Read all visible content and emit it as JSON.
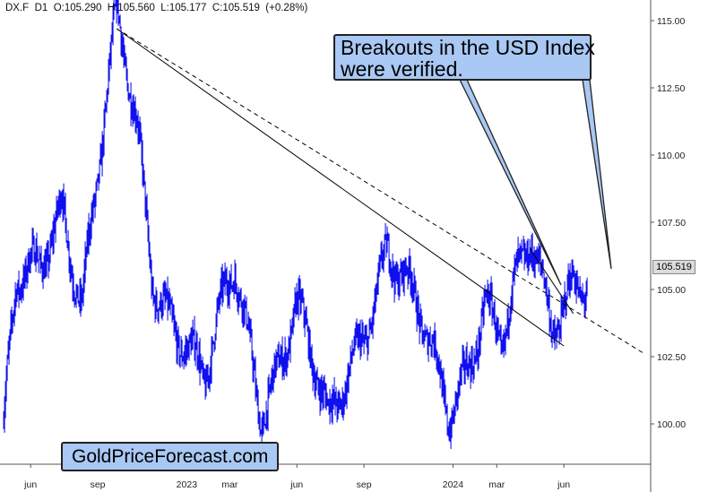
{
  "header": {
    "symbol": "DX.F",
    "timeframe": "D1",
    "open": "O:105.290",
    "high": "H:105.560",
    "low": "L:105.177",
    "close": "C:105.519",
    "change": "(+0.28%)"
  },
  "callout": {
    "line1": "Breakouts in the USD Index",
    "line2": "were verified."
  },
  "watermark": "GoldPriceForecast.com",
  "last_price_label": "105.519",
  "colors": {
    "series": "#0000ee",
    "callout_bg": "#a9c8f3",
    "trendline": "#000000",
    "axis": "#555555"
  },
  "chart_data": {
    "type": "line",
    "title": "",
    "xlabel": "",
    "ylabel": "",
    "ylim": [
      98.5,
      115.5
    ],
    "grid": false,
    "x_ticks": [
      "jun",
      "sep",
      "2023",
      "mar",
      "jun",
      "sep",
      "2024",
      "mar",
      "jun"
    ],
    "y_ticks": [
      "100.00",
      "102.50",
      "105.00",
      "107.50",
      "110.00",
      "112.50",
      "115.00"
    ],
    "series": [
      {
        "x": [
          "2022-04-25",
          "2022-05-12",
          "2022-06-14",
          "2022-07-14",
          "2022-08-10",
          "2022-09-27",
          "2022-10-25",
          "2022-11-15",
          "2022-12-30",
          "2023-01-26",
          "2023-03-08",
          "2023-04-13",
          "2023-05-31",
          "2023-07-14",
          "2023-10-03",
          "2023-12-27",
          "2024-02-14",
          "2024-03-08",
          "2024-04-16",
          "2024-05-16",
          "2024-06-14",
          "2024-07-03"
        ],
        "values": [
          99.8,
          104.8,
          105.5,
          108.5,
          105.0,
          114.7,
          110.5,
          105.5,
          103.5,
          101.5,
          105.5,
          100.8,
          104.5,
          99.5,
          106.8,
          100.5,
          104.8,
          102.8,
          106.5,
          104.0,
          105.8,
          105.519
        ]
      }
    ],
    "annotations": [
      {
        "type": "trendline",
        "style": "solid",
        "from": [
          "2022-09-27",
          114.7
        ],
        "to": [
          "2024-06-01",
          102.9
        ]
      },
      {
        "type": "trendline",
        "style": "dashed",
        "from": [
          "2022-09-27",
          114.7
        ],
        "to": [
          "2024-09-20",
          102.6
        ]
      },
      {
        "type": "trendline",
        "style": "solid",
        "from": [
          "2024-04-16",
          106.5
        ],
        "to": [
          "2024-06-14",
          104.1
        ]
      }
    ]
  }
}
